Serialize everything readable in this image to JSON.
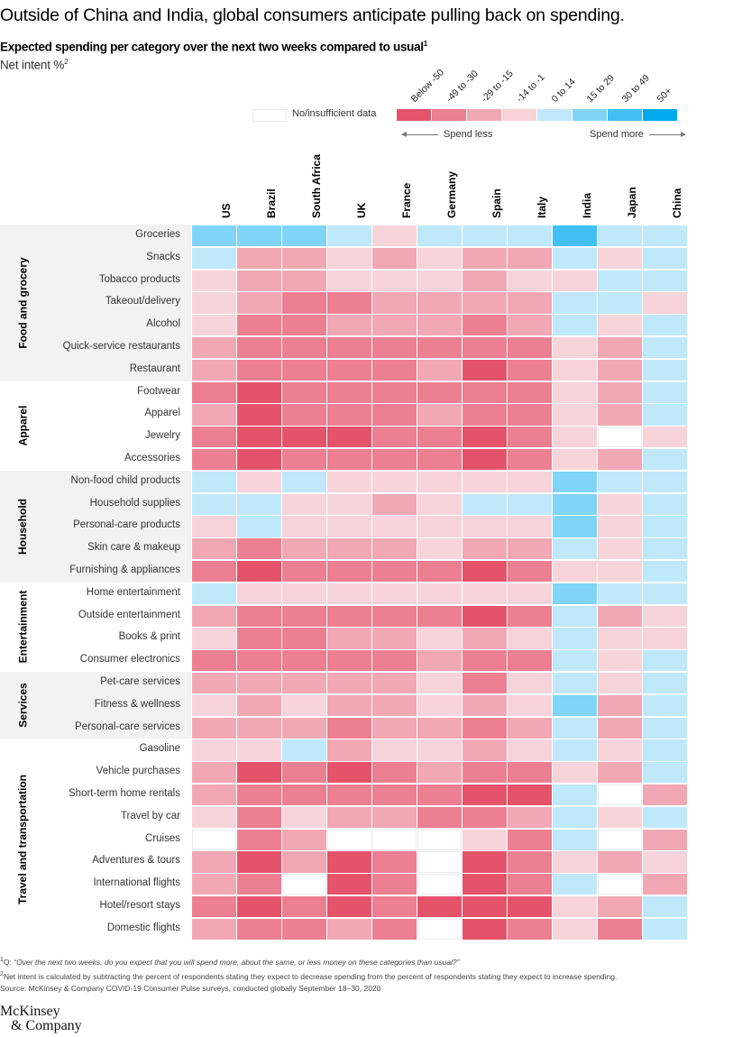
{
  "title": "Outside of China and India, global consumers anticipate pulling back on spending.",
  "subtitle": "Expected spending per category over the next two weeks compared to usual",
  "subtitle_footnote": "1",
  "unit_label": "Net intent %",
  "unit_footnote": "2",
  "legend": {
    "no_data_label": "No/insufficient data",
    "spend_less_label": "Spend less",
    "spend_more_label": "Spend more",
    "bins": [
      {
        "label": "Below -50",
        "level": -4,
        "color": "#E5536B"
      },
      {
        "label": "-49 to -30",
        "level": -3,
        "color": "#EC7F91"
      },
      {
        "label": "-29 to -15",
        "level": -2,
        "color": "#F1A8B4"
      },
      {
        "label": "-14 to -1",
        "level": -1,
        "color": "#F7D4DA"
      },
      {
        "label": "0 to 14",
        "level": 1,
        "color": "#C0E8FB"
      },
      {
        "label": "15 to 29",
        "level": 2,
        "color": "#80D4F7"
      },
      {
        "label": "30 to 49",
        "level": 3,
        "color": "#42BFF5"
      },
      {
        "label": "50+",
        "level": 4,
        "color": "#00A8EE"
      }
    ]
  },
  "chart_data": {
    "type": "heatmap",
    "title": "Outside of China and India, global consumers anticipate pulling back on spending.",
    "subtitle": "Expected spending per category over the next two weeks compared to usual",
    "value_label": "Net intent %",
    "value_encoding": "binned level: -4=Below -50, -3=-49 to -30, -2=-29 to -15, -1=-14 to -1, 1=0 to 14, 2=15 to 29, 3=30 to 49, 4=50+, null=No/insufficient data",
    "columns": [
      "US",
      "Brazil",
      "South Africa",
      "UK",
      "France",
      "Germany",
      "Spain",
      "Italy",
      "India",
      "Japan",
      "China"
    ],
    "groups": [
      {
        "name": "Food and grocery",
        "shaded": true,
        "rows": [
          {
            "label": "Groceries",
            "values": [
              2,
              2,
              2,
              1,
              -1,
              1,
              1,
              1,
              3,
              1,
              1
            ]
          },
          {
            "label": "Snacks",
            "values": [
              1,
              -2,
              -2,
              -1,
              -2,
              -1,
              -2,
              -2,
              1,
              -1,
              1
            ]
          },
          {
            "label": "Tobacco products",
            "values": [
              -1,
              -2,
              -2,
              -1,
              -1,
              -1,
              -2,
              -1,
              -1,
              1,
              1
            ]
          },
          {
            "label": "Takeout/delivery",
            "values": [
              -1,
              -2,
              -3,
              -3,
              -2,
              -2,
              -2,
              -2,
              1,
              1,
              -1
            ]
          },
          {
            "label": "Alcohol",
            "values": [
              -1,
              -3,
              -3,
              -2,
              -2,
              -2,
              -3,
              -2,
              1,
              -1,
              1
            ]
          },
          {
            "label": "Quick-service restaurants",
            "values": [
              -2,
              -3,
              -3,
              -3,
              -3,
              -3,
              -3,
              -3,
              -1,
              -2,
              1
            ]
          },
          {
            "label": "Restaurant",
            "values": [
              -2,
              -3,
              -3,
              -3,
              -3,
              -2,
              -4,
              -3,
              -1,
              -2,
              1
            ]
          }
        ]
      },
      {
        "name": "Apparel",
        "shaded": false,
        "rows": [
          {
            "label": "Footwear",
            "values": [
              -3,
              -4,
              -3,
              -3,
              -3,
              -3,
              -3,
              -3,
              -1,
              -2,
              1
            ]
          },
          {
            "label": "Apparel",
            "values": [
              -2,
              -4,
              -3,
              -3,
              -3,
              -2,
              -3,
              -3,
              -1,
              -2,
              1
            ]
          },
          {
            "label": "Jewelry",
            "values": [
              -3,
              -4,
              -4,
              -4,
              -3,
              -3,
              -4,
              -3,
              -1,
              null,
              -1
            ]
          },
          {
            "label": "Accessories",
            "values": [
              -3,
              -4,
              -3,
              -3,
              -3,
              -3,
              -4,
              -3,
              -1,
              -2,
              1
            ]
          }
        ]
      },
      {
        "name": "Household",
        "shaded": true,
        "rows": [
          {
            "label": "Non-food child products",
            "values": [
              1,
              -1,
              1,
              -1,
              -1,
              -1,
              -1,
              -1,
              2,
              1,
              1
            ]
          },
          {
            "label": "Household supplies",
            "values": [
              1,
              1,
              -1,
              -1,
              -2,
              -1,
              1,
              1,
              2,
              -1,
              1
            ]
          },
          {
            "label": "Personal-care products",
            "values": [
              -1,
              1,
              -1,
              -1,
              -1,
              -1,
              -1,
              -1,
              2,
              -1,
              1
            ]
          },
          {
            "label": "Skin care & makeup",
            "values": [
              -2,
              -3,
              -2,
              -2,
              -2,
              -1,
              -2,
              -2,
              1,
              -1,
              1
            ]
          },
          {
            "label": "Furnishing & appliances",
            "values": [
              -3,
              -4,
              -3,
              -3,
              -3,
              -3,
              -4,
              -3,
              -1,
              -1,
              1
            ]
          }
        ]
      },
      {
        "name": "Entertainment",
        "shaded": false,
        "rows": [
          {
            "label": "Home entertainment",
            "values": [
              1,
              -1,
              -1,
              -1,
              -1,
              -1,
              -1,
              -1,
              2,
              1,
              1
            ]
          },
          {
            "label": "Outside entertainment",
            "values": [
              -2,
              -3,
              -3,
              -3,
              -3,
              -3,
              -4,
              -3,
              1,
              -2,
              -1
            ]
          },
          {
            "label": "Books & print",
            "values": [
              -1,
              -3,
              -3,
              -2,
              -2,
              -1,
              -2,
              -1,
              1,
              -1,
              -1
            ]
          },
          {
            "label": "Consumer electronics",
            "values": [
              -3,
              -3,
              -3,
              -3,
              -3,
              -2,
              -3,
              -3,
              1,
              -1,
              1
            ]
          }
        ]
      },
      {
        "name": "Services",
        "shaded": true,
        "rows": [
          {
            "label": "Pet-care services",
            "values": [
              -2,
              -2,
              -2,
              -2,
              -2,
              -1,
              -3,
              -1,
              1,
              -1,
              1
            ]
          },
          {
            "label": "Fitness & wellness",
            "values": [
              -1,
              -2,
              -1,
              -2,
              -2,
              -1,
              -2,
              -1,
              2,
              -2,
              1
            ]
          },
          {
            "label": "Personal-care services",
            "values": [
              -2,
              -2,
              -2,
              -3,
              -2,
              -2,
              -3,
              -2,
              1,
              -2,
              1
            ]
          }
        ]
      },
      {
        "name": "Travel and transportation",
        "shaded": false,
        "rows": [
          {
            "label": "Gasoline",
            "values": [
              -1,
              -1,
              1,
              -2,
              -1,
              -1,
              -2,
              -1,
              1,
              -1,
              1
            ]
          },
          {
            "label": "Vehicle purchases",
            "values": [
              -2,
              -4,
              -3,
              -4,
              -3,
              -2,
              -3,
              -3,
              -1,
              -2,
              1
            ]
          },
          {
            "label": "Short-term home rentals",
            "values": [
              -2,
              -3,
              -3,
              -3,
              -3,
              -3,
              -4,
              -4,
              1,
              null,
              -2
            ]
          },
          {
            "label": "Travel by car",
            "values": [
              -1,
              -3,
              -1,
              -2,
              -2,
              -3,
              -3,
              -2,
              1,
              -1,
              1
            ]
          },
          {
            "label": "Cruises",
            "values": [
              null,
              -3,
              -2,
              null,
              null,
              null,
              -1,
              -3,
              1,
              null,
              -2
            ]
          },
          {
            "label": "Adventures & tours",
            "values": [
              -2,
              -4,
              -2,
              -4,
              -3,
              null,
              -4,
              -3,
              -1,
              -2,
              -1
            ]
          },
          {
            "label": "International flights",
            "values": [
              -2,
              -3,
              null,
              -4,
              -3,
              null,
              -4,
              -3,
              1,
              null,
              -2
            ]
          },
          {
            "label": "Hotel/resort stays",
            "values": [
              -3,
              -4,
              -3,
              -4,
              -3,
              -4,
              -4,
              -4,
              -1,
              -2,
              1
            ]
          },
          {
            "label": "Domestic flights",
            "values": [
              -2,
              -3,
              -3,
              -2,
              -3,
              null,
              -4,
              -3,
              -1,
              -3,
              1
            ]
          }
        ]
      }
    ]
  },
  "footnotes": {
    "f1_marker": "1",
    "f1_prefix": "Q: ",
    "f1_text": "“Over the next two weeks, do you expect that you will spend more, about the same, or less money on these categories than usual?”",
    "f2_marker": "2",
    "f2_text": "Net intent is calculated by subtracting the percent of respondents stating they expect to decrease spending from the percent of respondents stating they expect to increase spending.",
    "source": "Source: McKinsey & Company COVID-19 Consumer Pulse surveys, conducted globally September 18–30, 2020"
  },
  "logo": {
    "line1": "McKinsey",
    "line2": "& Company"
  }
}
